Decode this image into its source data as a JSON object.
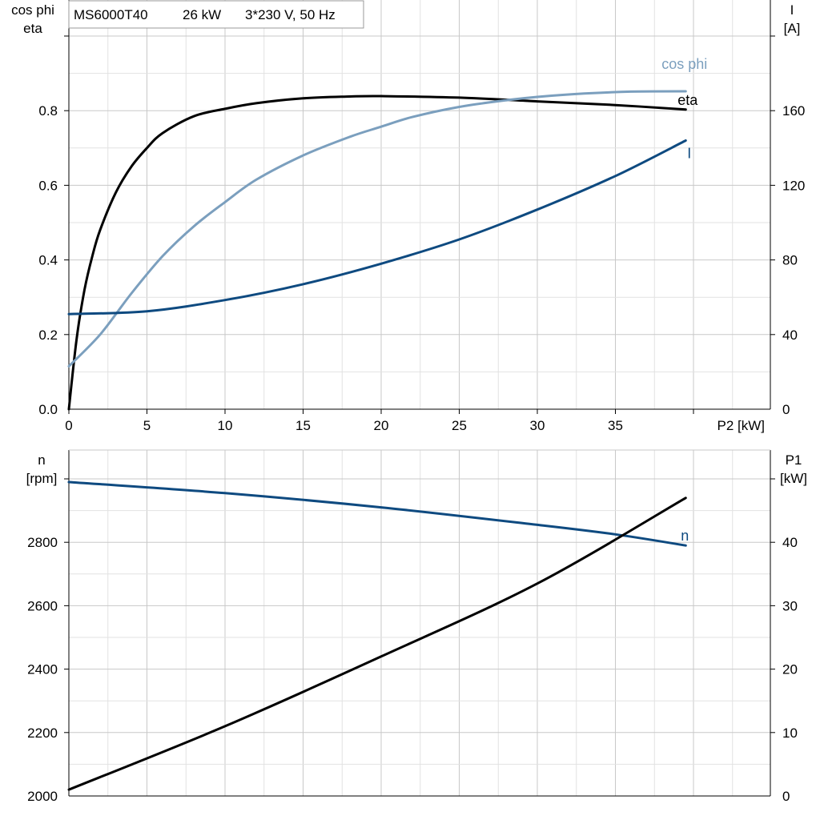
{
  "title": {
    "model": "MS6000T40",
    "power": "26 kW",
    "supply": "3*230 V, 50 Hz"
  },
  "colors": {
    "eta": "#000000",
    "cos_phi": "#7b9fbe",
    "current": "#0e4a80",
    "speed": "#0e4a80",
    "p1": "#000000",
    "grid_major": "#c8c8c8",
    "grid_minor": "#e2e2e2",
    "axis": "#000000"
  },
  "chart_data": [
    {
      "type": "line",
      "axes": {
        "left_label_lines": [
          "cos phi",
          "eta"
        ],
        "right_label_lines": [
          "I",
          "[A]"
        ],
        "x_label": "P2 [kW]",
        "x_range": [
          0,
          45
        ],
        "x_ticks": [
          0,
          5,
          10,
          15,
          20,
          25,
          30,
          35
        ],
        "y_left_range": [
          0,
          1.0
        ],
        "y_left_ticks": [
          "0.0",
          "0.2",
          "0.4",
          "0.6",
          "0.8"
        ],
        "y_right_range": [
          0,
          200
        ],
        "y_right_ticks": [
          "0",
          "40",
          "80",
          "120",
          "160"
        ],
        "grid": true
      },
      "series": [
        {
          "name": "eta",
          "axis": "left",
          "color_key": "eta",
          "label_at_end": true,
          "x": [
            0,
            0.5,
            1,
            1.5,
            2,
            3,
            4,
            5,
            6,
            8,
            10,
            12,
            15,
            18,
            20,
            25,
            30,
            35,
            39.5
          ],
          "y": [
            0.0,
            0.19,
            0.32,
            0.41,
            0.48,
            0.58,
            0.65,
            0.7,
            0.74,
            0.785,
            0.805,
            0.82,
            0.833,
            0.838,
            0.839,
            0.835,
            0.825,
            0.815,
            0.803
          ]
        },
        {
          "name": "cos phi",
          "axis": "left",
          "color_key": "cos_phi",
          "label_at_end": true,
          "x": [
            0,
            2,
            4,
            6,
            8,
            10,
            12,
            15,
            18,
            20,
            22,
            25,
            28,
            30,
            33,
            36,
            39.5
          ],
          "y": [
            0.115,
            0.2,
            0.31,
            0.41,
            0.49,
            0.555,
            0.615,
            0.68,
            0.73,
            0.757,
            0.783,
            0.81,
            0.828,
            0.837,
            0.846,
            0.851,
            0.852
          ]
        },
        {
          "name": "I",
          "axis": "right",
          "color_key": "current",
          "label_at_end": true,
          "x": [
            0,
            5,
            10,
            15,
            20,
            25,
            30,
            35,
            39.5
          ],
          "y": [
            51,
            52.5,
            58.5,
            67,
            78,
            91,
            107,
            125,
            144
          ]
        }
      ]
    },
    {
      "type": "line",
      "axes": {
        "left_label_lines": [
          "n",
          "[rpm]"
        ],
        "right_label_lines": [
          "P1",
          "[kW]"
        ],
        "x_range": [
          0,
          45
        ],
        "y_left_range": [
          2000,
          3100
        ],
        "y_left_ticks": [
          "2000",
          "2200",
          "2400",
          "2600",
          "2800"
        ],
        "y_right_range": [
          0,
          55
        ],
        "y_right_ticks": [
          "0",
          "10",
          "20",
          "30",
          "40"
        ],
        "grid": true
      },
      "series": [
        {
          "name": "n",
          "axis": "left",
          "color_key": "speed",
          "label_at_end": true,
          "x": [
            0,
            10,
            20,
            30,
            35,
            39.5
          ],
          "y": [
            2990,
            2955,
            2910,
            2855,
            2825,
            2790
          ]
        },
        {
          "name": "",
          "axis": "right",
          "color_key": "p1",
          "label_at_end": false,
          "x": [
            0,
            10,
            20,
            30,
            39.5
          ],
          "y": [
            1,
            11,
            22,
            33.5,
            47
          ]
        }
      ]
    }
  ]
}
